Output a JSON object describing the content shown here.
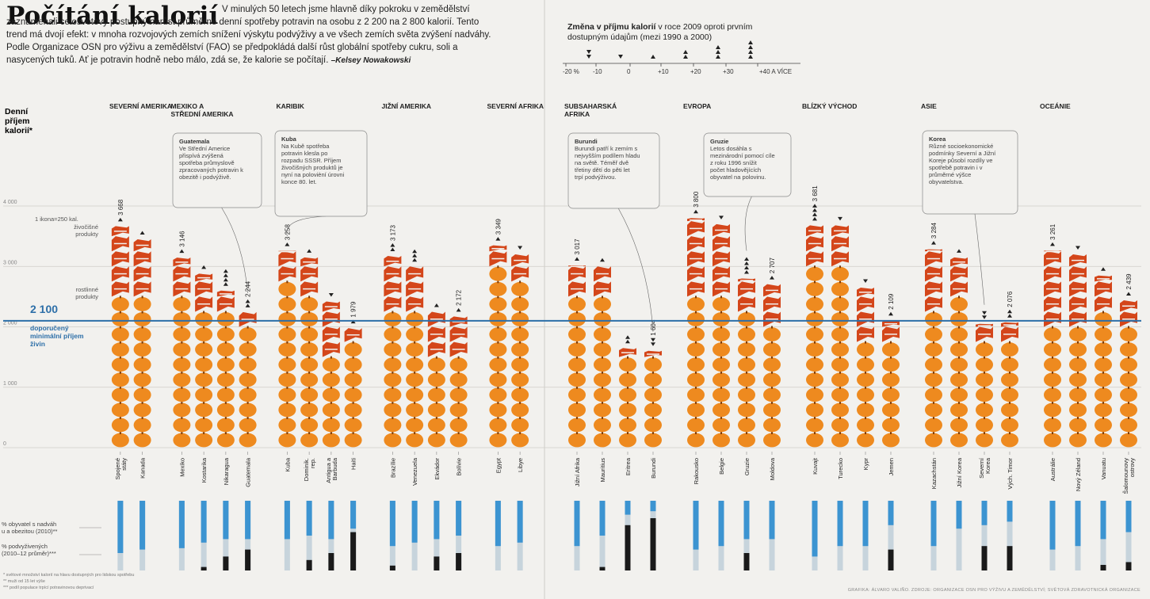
{
  "title": "Počítání kalorií",
  "intro": {
    "text": "V minulých 50 letech jsme hlavně díky pokroku v zemědělství zaznamenali celosvětový postupný nárůst průměrné denní spotřeby potravin na osobu z 2 200 na 2 800 kalorií. Tento trend má dvojí efekt: v mnoha rozvojových zemích snížení výskytu podvýživy a ve všech zemích světa zvýšení nadváhy. Podle Organizace OSN pro výživu a zemědělství (FAO) se předpokládá další růst globální spotřeby cukru, soli a nasycených tuků. Ať je potravin hodně nebo málo, zdá se, že kalorie se počítají.",
    "author": "–Kelsey Nowakowski"
  },
  "change_legend": {
    "title_bold": "Změna v příjmu kalorií",
    "title_rest": " v roce 2009 oproti prvním dostupným údajům (mezi 1990 a 2000)",
    "ticks": [
      "-20 %",
      "-10",
      "0",
      "+10",
      "+20",
      "+30",
      "+40 A VÍCE"
    ],
    "arrow_counts": [
      -2,
      -1,
      1,
      2,
      3,
      4
    ]
  },
  "y_axis_label": "Denní příjem kalorií*",
  "icon_note": "1 ikona=250 kal.",
  "animal_label": "živočišné produkty",
  "plant_label": "rostlinné produkty",
  "reference_value": "2 100",
  "reference_label": "doporučený minimální příjem živin",
  "overweight_label": "% obyvatel s nadváhou a obezitou (2010)**",
  "undernourished_label": "% podvyživených (2010–12 průměr)***",
  "footnote_1": "* světové množství kalorií na hlavu dostupných pro lidskou spotřebu",
  "footnote_2": "** muži od 15 let výše",
  "footnote_3": "*** podíl populace trpící potravinovou deprivací",
  "credit": "GRAFIKA: ÁLVARO VALIÑO. ZDROJE: ORGANIZACE OSN PRO VÝŽIVU A ZEMĚDĚLSTVÍ; SVĚTOVÁ ZDRAVOTNICKÁ ORGANIZACE",
  "colors": {
    "plant": "#ee8a1f",
    "animal": "#d4461a",
    "reference": "#2d6fa8",
    "overweight": "#3c94d1",
    "rest": "#c7d4dc",
    "undernourished": "#1a1a1a"
  },
  "chart_data": {
    "type": "bar",
    "ylim": [
      0,
      4000
    ],
    "yticks": [
      0,
      1000,
      2000,
      3000,
      4000
    ],
    "ytick_labels": [
      "0",
      "1 000",
      "2 000",
      "3 000",
      "4 000"
    ],
    "reference_line": 2100,
    "regions": [
      {
        "name": "SEVERNÍ AMERIKA",
        "countries": [
          {
            "name": "Spojené státy",
            "kcal": 3668,
            "kcal_label": "3 668",
            "animal": 1000,
            "change": 1,
            "overweight": 75,
            "under": 0
          },
          {
            "name": "Kanada",
            "kcal": 3450,
            "animal": 850,
            "change": 1,
            "overweight": 70,
            "under": 0
          }
        ]
      },
      {
        "name": "MEXIKO A STŘEDNÍ AMERIKA",
        "countries": [
          {
            "name": "Mexiko",
            "kcal": 3146,
            "kcal_label": "3 146",
            "animal": 550,
            "change": 1,
            "overweight": 68,
            "under": 0
          },
          {
            "name": "Kostarika",
            "kcal": 2880,
            "animal": 480,
            "change": 1,
            "overweight": 60,
            "under": 5
          },
          {
            "name": "Nikaragua",
            "kcal": 2600,
            "animal": 250,
            "change": 4,
            "overweight": 55,
            "under": 20
          },
          {
            "name": "Guatemala",
            "kcal": 2244,
            "kcal_label": "2 244",
            "animal": 200,
            "change": 2,
            "overweight": 55,
            "under": 30
          }
        ]
      },
      {
        "name": "KARIBIK",
        "countries": [
          {
            "name": "Kuba",
            "kcal": 3258,
            "kcal_label": "3 258",
            "animal": 500,
            "change": 1,
            "overweight": 55,
            "under": 0
          },
          {
            "name": "Dominik. rep.",
            "kcal": 3150,
            "animal": 450,
            "change": 1,
            "overweight": 50,
            "under": 15
          },
          {
            "name": "Antigua a Barbuda",
            "kcal": 2420,
            "animal": 900,
            "change": -1,
            "overweight": 55,
            "under": 25
          },
          {
            "name": "Haiti",
            "kcal": 1979,
            "kcal_label": "1 979",
            "animal": 150,
            "change": 1,
            "overweight": 40,
            "under": 55
          }
        ]
      },
      {
        "name": "JIŽNÍ AMERIKA",
        "countries": [
          {
            "name": "Brazílie",
            "kcal": 3173,
            "kcal_label": "3 173",
            "animal": 700,
            "change": 2,
            "overweight": 65,
            "under": 7
          },
          {
            "name": "Venezuela",
            "kcal": 3000,
            "animal": 600,
            "change": 3,
            "overweight": 60,
            "under": 0
          },
          {
            "name": "Ekvádor",
            "kcal": 2250,
            "animal": 600,
            "change": 1,
            "overweight": 55,
            "under": 20
          },
          {
            "name": "Bolívie",
            "kcal": 2172,
            "kcal_label": "2 172",
            "animal": 500,
            "change": 1,
            "overweight": 50,
            "under": 25
          }
        ]
      },
      {
        "name": "SEVERNÍ AFRIKA",
        "countries": [
          {
            "name": "Egypt",
            "kcal": 3349,
            "kcal_label": "3 349",
            "animal": 250,
            "change": 1,
            "overweight": 65,
            "under": 0
          },
          {
            "name": "Libye",
            "kcal": 3200,
            "animal": 400,
            "change": -1,
            "overweight": 60,
            "under": 0
          }
        ]
      },
      {
        "name": "SUBSAHARSKÁ AFRIKA",
        "countries": [
          {
            "name": "Jižní Afrika",
            "kcal": 3017,
            "kcal_label": "3 017",
            "animal": 500,
            "change": 1,
            "overweight": 65,
            "under": 0
          },
          {
            "name": "Mauritius",
            "kcal": 3000,
            "animal": 450,
            "change": 1,
            "overweight": 50,
            "under": 5
          },
          {
            "name": "Eritrea",
            "kcal": 1650,
            "animal": 150,
            "change": 2,
            "overweight": 20,
            "under": 65
          },
          {
            "name": "Burundi",
            "kcal": 1604,
            "kcal_label": "1 604",
            "animal": 100,
            "change": -2,
            "overweight": 15,
            "under": 75
          }
        ]
      },
      {
        "name": "EVROPA",
        "countries": [
          {
            "name": "Rakousko",
            "kcal": 3800,
            "kcal_label": "3 800",
            "animal": 1200,
            "change": 1,
            "overweight": 70,
            "under": 0
          },
          {
            "name": "Belgie",
            "kcal": 3700,
            "animal": 1100,
            "change": -1,
            "overweight": 65,
            "under": 0
          },
          {
            "name": "Gruzie",
            "kcal": 2800,
            "animal": 550,
            "change": 4,
            "overweight": 55,
            "under": 25
          },
          {
            "name": "Moldova",
            "kcal": 2707,
            "kcal_label": "2 707",
            "animal": 550,
            "change": 1,
            "overweight": 55,
            "under": 0
          }
        ]
      },
      {
        "name": "BLÍZKÝ VÝCHOD",
        "countries": [
          {
            "name": "Kuvajt",
            "kcal": 3681,
            "kcal_label": "3 681",
            "animal": 650,
            "change": 4,
            "overweight": 80,
            "under": 0
          },
          {
            "name": "Turecko",
            "kcal": 3680,
            "animal": 500,
            "change": -1,
            "overweight": 65,
            "under": 0
          },
          {
            "name": "Kypr",
            "kcal": 2650,
            "animal": 700,
            "change": -1,
            "overweight": 65,
            "under": 0
          },
          {
            "name": "Jemen",
            "kcal": 2109,
            "kcal_label": "2 109",
            "animal": 150,
            "change": 1,
            "overweight": 35,
            "under": 30
          }
        ]
      },
      {
        "name": "ASIE",
        "countries": [
          {
            "name": "Kazachstán",
            "kcal": 3284,
            "kcal_label": "3 284",
            "animal": 850,
            "change": 1,
            "overweight": 65,
            "under": 0
          },
          {
            "name": "Jižní Korea",
            "kcal": 3150,
            "animal": 450,
            "change": 1,
            "overweight": 40,
            "under": 0
          },
          {
            "name": "Severní Korea",
            "kcal": 2050,
            "animal": 100,
            "change": -2,
            "overweight": 35,
            "under": 35
          },
          {
            "name": "Vých. Timor",
            "kcal": 2076,
            "kcal_label": "2 076",
            "animal": 100,
            "change": 2,
            "overweight": 30,
            "under": 35
          }
        ]
      },
      {
        "name": "OCEÁNIE",
        "countries": [
          {
            "name": "Austrálie",
            "kcal": 3261,
            "kcal_label": "3 261",
            "animal": 1100,
            "change": 1,
            "overweight": 70,
            "under": 0
          },
          {
            "name": "Nový Zéland",
            "kcal": 3200,
            "animal": 1000,
            "change": -1,
            "overweight": 65,
            "under": 0
          },
          {
            "name": "Vanuatu",
            "kcal": 2850,
            "animal": 450,
            "change": 1,
            "overweight": 55,
            "under": 8
          },
          {
            "name": "Šalomounovy ostrovy",
            "kcal": 2439,
            "kcal_label": "2 439",
            "animal": 300,
            "change": 1,
            "overweight": 45,
            "under": 12
          }
        ]
      }
    ]
  },
  "callouts": [
    {
      "country": "Guatemala",
      "title": "Guatemala",
      "text": "Ve Střední Americe přispívá zvýšená spotřeba průmyslově zpracovaných potravin k obezitě i podvýživě."
    },
    {
      "country": "Kuba",
      "title": "Kuba",
      "text": "Na Kubě spotřeba potravin klesla po rozpadu SSSR. Příjem živočišných produktů je nyní na polovièní úrovni konce 80. let."
    },
    {
      "country": "Burundi",
      "title": "Burundi",
      "text": "Burundi patří k zemím s nejvyšším podílem hladu na světě. Téměř dvě třetiny dětí do pěti let trpí podvýživou."
    },
    {
      "country": "Gruzie",
      "title": "Gruzie",
      "text": "Letos dosáhla s mezinárodní pomocí cíle z roku 1996 snížit počet hladovějících obyvatel na polovinu."
    },
    {
      "country": "Severní Korea",
      "title": "Korea",
      "text": "Různé socioekonomické podmínky Severní a Jižní Koreje působí rozdíly ve spotřebě potravin i v průměrné výšce obyvatelstva."
    }
  ]
}
